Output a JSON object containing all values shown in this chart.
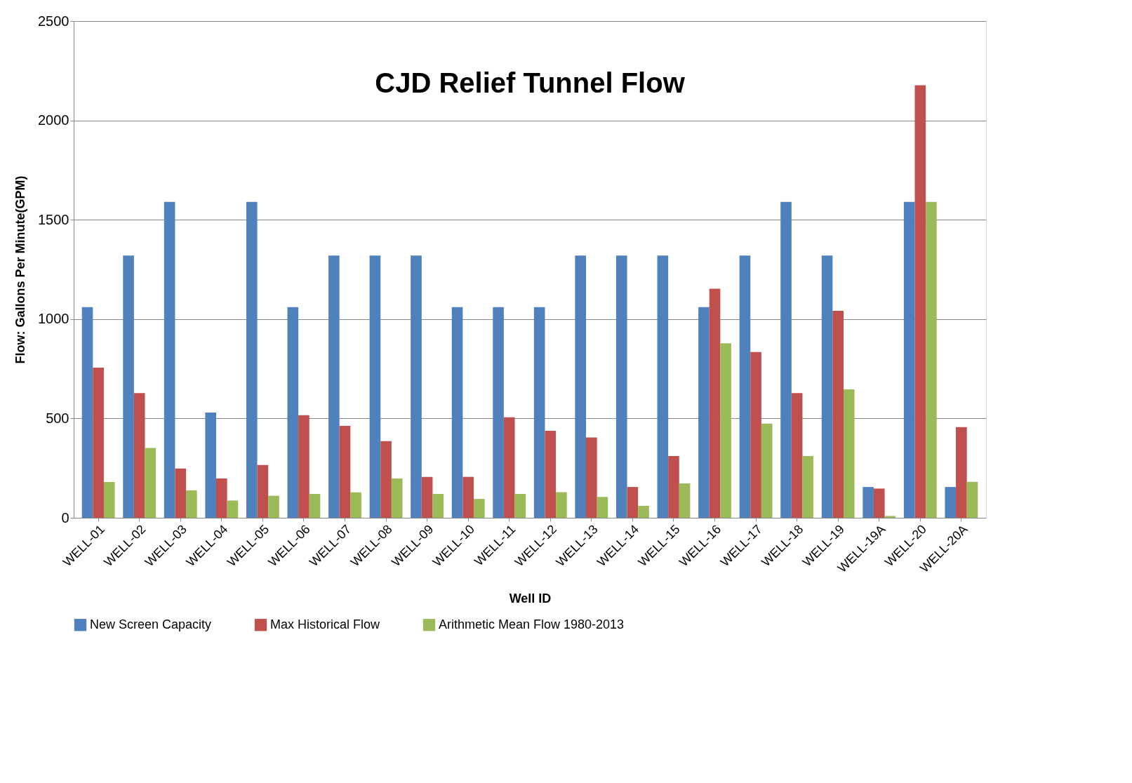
{
  "chart_data": {
    "type": "bar",
    "title": "CJD Relief Tunnel Flow",
    "xlabel": "Well ID",
    "ylabel": "Flow: Gallons  Per Minute(GPM)",
    "categories": [
      "WELL-01",
      "WELL-02",
      "WELL-03",
      "WELL-04",
      "WELL-05",
      "WELL-06",
      "WELL-07",
      "WELL-08",
      "WELL-09",
      "WELL-10",
      "WELL-11",
      "WELL-12",
      "WELL-13",
      "WELL-14",
      "WELL-15",
      "WELL-16",
      "WELL-17",
      "WELL-18",
      "WELL-19",
      "WELL-19A",
      "WELL-20",
      "WELL-20A"
    ],
    "series": [
      {
        "name": "New Screen Capacity",
        "color": "#4f81bd",
        "values": [
          1060,
          1320,
          1590,
          530,
          1590,
          1060,
          1320,
          1320,
          1320,
          1060,
          1060,
          1060,
          1320,
          1320,
          1320,
          1060,
          1320,
          1590,
          1320,
          155,
          1590,
          155
        ]
      },
      {
        "name": "Max Historical Flow",
        "color": "#c0504d",
        "values": [
          756,
          628,
          248,
          198,
          266,
          516,
          463,
          386,
          206,
          206,
          506,
          438,
          404,
          155,
          311,
          1153,
          834,
          628,
          1042,
          147,
          2177,
          456
        ]
      },
      {
        "name": "Arithmetic Mean Flow 1980-2013",
        "color": "#9bbb59",
        "values": [
          180,
          351,
          138,
          87,
          111,
          120,
          128,
          198,
          120,
          95,
          120,
          129,
          105,
          60,
          173,
          878,
          474,
          311,
          646,
          9,
          1590,
          181
        ]
      }
    ],
    "ylim": [
      0,
      2500
    ],
    "yticks": [
      0,
      500,
      1000,
      1500,
      2000,
      2500
    ],
    "grid": "y",
    "legend": "bottom"
  }
}
